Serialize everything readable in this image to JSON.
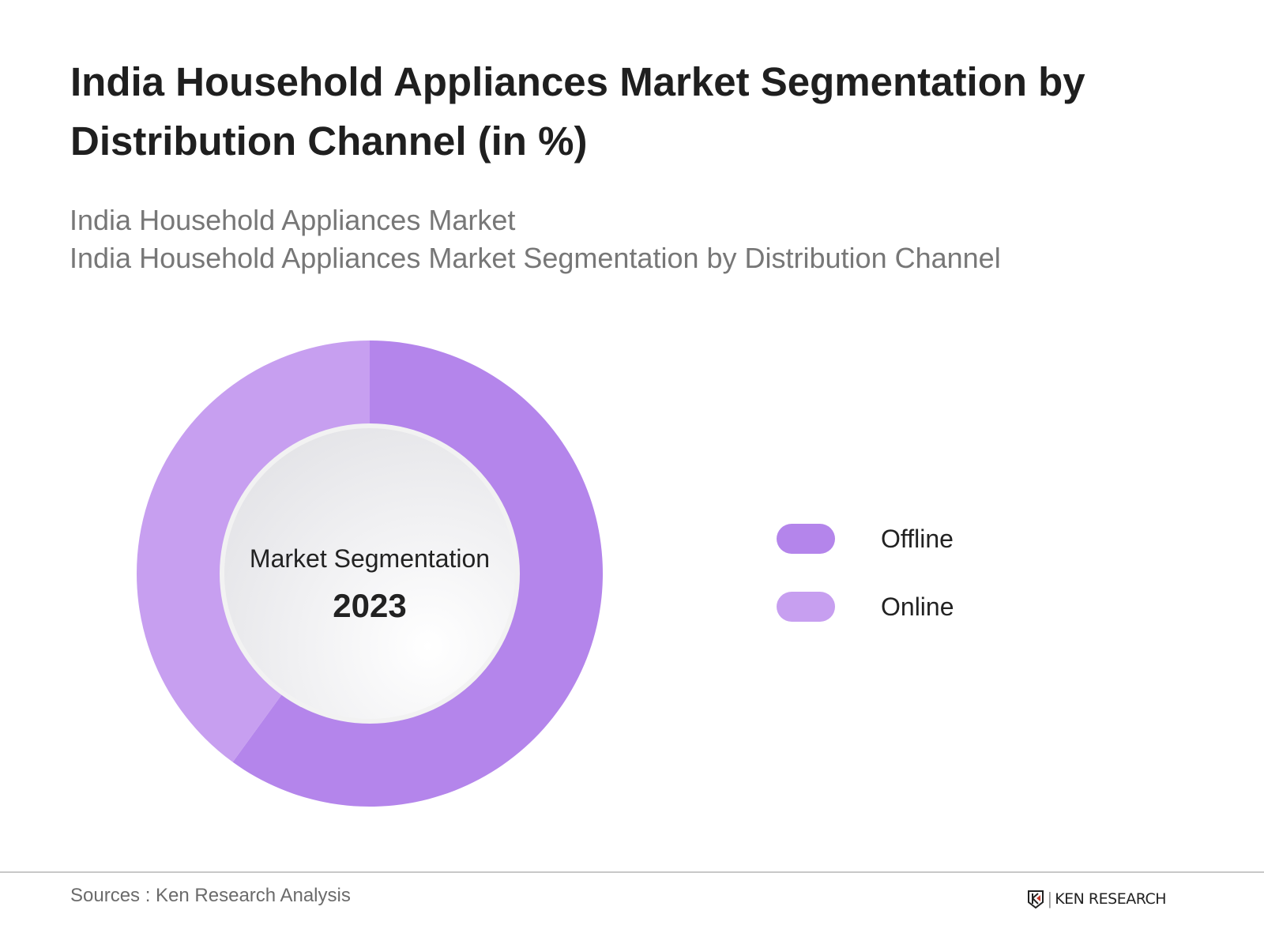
{
  "header": {
    "title": "India Household Appliances Market Segmentation by Distribution Channel (in %)",
    "subtitle_1": "India Household Appliances Market",
    "subtitle_2": "India Household Appliances Market Segmentation by Distribution Channel"
  },
  "chart_data": {
    "type": "pie",
    "variant": "donut",
    "center_label": "Market Segmentation",
    "center_year": "2023",
    "categories": [
      "Offline",
      "Online"
    ],
    "values": [
      60,
      40
    ],
    "colors": [
      "#b485eb",
      "#c79ff0"
    ],
    "legend_position": "right"
  },
  "footer": {
    "source": "Sources : Ken Research Analysis",
    "logo_text": "KEN RESEARCH"
  }
}
